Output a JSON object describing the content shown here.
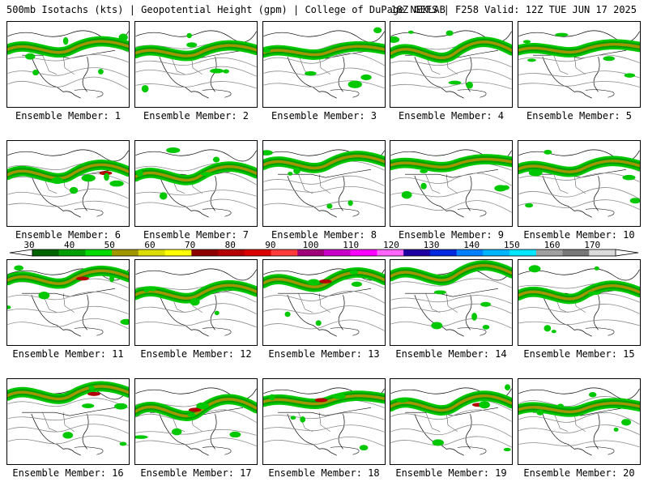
{
  "header": {
    "left": "500mb Isotachs (kts) | Geopotential Height (gpm) | College of DuPage NEXLAB",
    "right": "18Z GEFS | F258 Valid: 12Z TUE JUN 17 2025"
  },
  "legend": {
    "ticks": [
      "30",
      "40",
      "50",
      "60",
      "70",
      "80",
      "90",
      "100",
      "110",
      "120",
      "130",
      "140",
      "150",
      "160",
      "170"
    ],
    "colors": [
      "#006400",
      "#00a000",
      "#00dc00",
      "#a09600",
      "#dcdc00",
      "#ffff00",
      "#8c0000",
      "#b40000",
      "#dc0000",
      "#ff3c3c",
      "#a00078",
      "#c800c8",
      "#ff00ff",
      "#ff64ff",
      "#1e00a0",
      "#0028dc",
      "#0080ff",
      "#00b4ff",
      "#00e6ff",
      "#a0a0a0",
      "#787878",
      "#dcdcdc"
    ]
  },
  "members": [
    {
      "label": "Ensemble Member: 1"
    },
    {
      "label": "Ensemble Member: 2"
    },
    {
      "label": "Ensemble Member: 3"
    },
    {
      "label": "Ensemble Member: 4"
    },
    {
      "label": "Ensemble Member: 5"
    },
    {
      "label": "Ensemble Member: 6"
    },
    {
      "label": "Ensemble Member: 7"
    },
    {
      "label": "Ensemble Member: 8"
    },
    {
      "label": "Ensemble Member: 9"
    },
    {
      "label": "Ensemble Member: 10"
    },
    {
      "label": "Ensemble Member: 11"
    },
    {
      "label": "Ensemble Member: 12"
    },
    {
      "label": "Ensemble Member: 13"
    },
    {
      "label": "Ensemble Member: 14"
    },
    {
      "label": "Ensemble Member: 15"
    },
    {
      "label": "Ensemble Member: 16"
    },
    {
      "label": "Ensemble Member: 17"
    },
    {
      "label": "Ensemble Member: 18"
    },
    {
      "label": "Ensemble Member: 19"
    },
    {
      "label": "Ensemble Member: 20"
    }
  ]
}
